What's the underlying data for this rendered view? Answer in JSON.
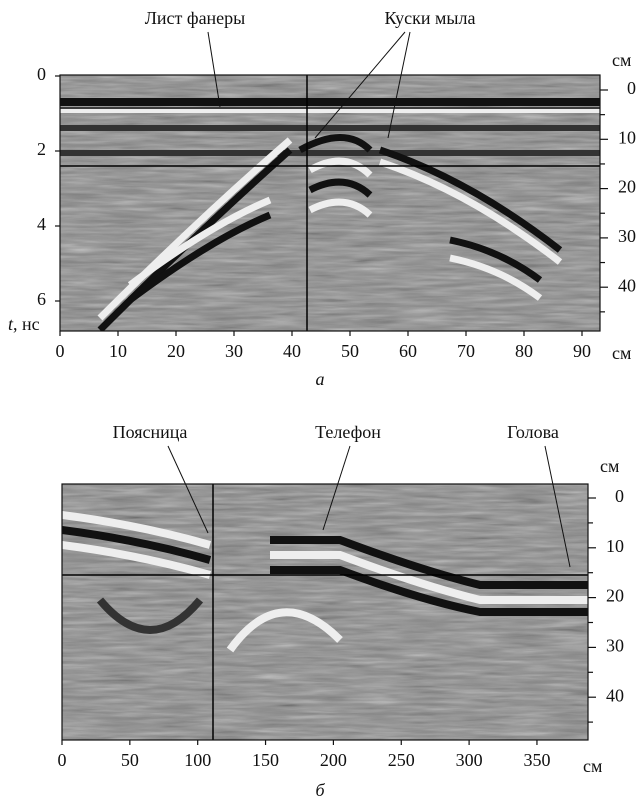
{
  "panel_a": {
    "annotations": [
      "Лист фанеры",
      "Куски мыла"
    ],
    "xticks": [
      0,
      10,
      20,
      30,
      40,
      50,
      60,
      70,
      80,
      90
    ],
    "x_unit": "см",
    "yticks": [
      0,
      2,
      4,
      6
    ],
    "y_label_symbol": "t",
    "y_label_unit": ", нс",
    "right_unit": "см",
    "right_ticks": [
      0,
      10,
      20,
      30,
      40
    ],
    "right_minor_ticks": [
      5,
      15,
      25,
      35,
      45
    ],
    "caption": "а"
  },
  "panel_b": {
    "annotations": [
      "Поясница",
      "Телефон",
      "Голова"
    ],
    "xticks": [
      0,
      50,
      100,
      150,
      200,
      250,
      300,
      350
    ],
    "x_unit": "см",
    "right_unit": "см",
    "right_ticks": [
      0,
      10,
      20,
      30,
      40
    ],
    "right_minor_ticks": [
      5,
      15,
      25,
      35,
      45
    ],
    "caption": "б"
  }
}
